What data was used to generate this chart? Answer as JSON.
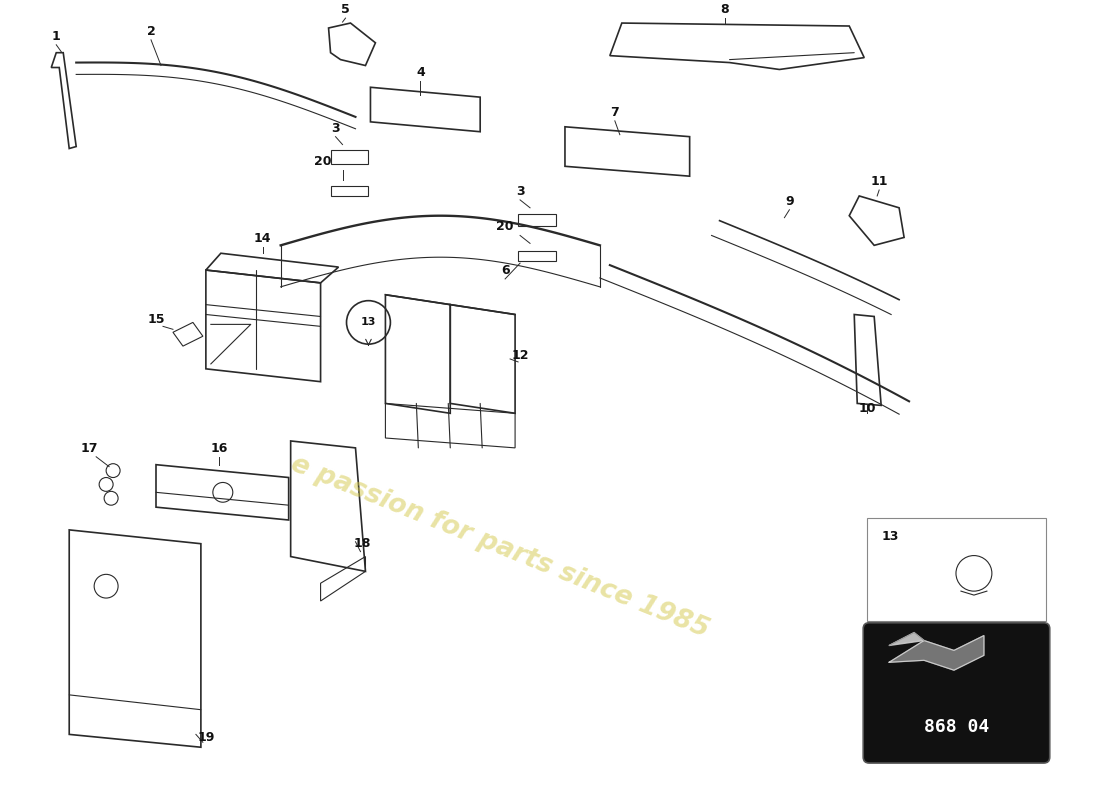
{
  "background_color": "#ffffff",
  "watermark_text": "e passion for parts since 1985",
  "watermark_color": "#d4c84a",
  "watermark_alpha": 0.5,
  "line_color": "#2a2a2a",
  "label_color": "#111111",
  "legend_part_number": "868 04",
  "fig_width": 11.0,
  "fig_height": 8.0,
  "dpi": 100
}
